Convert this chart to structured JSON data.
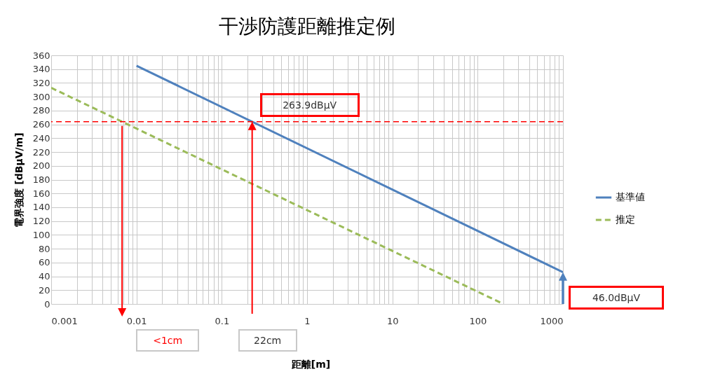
{
  "chart_data": {
    "type": "line",
    "title": "干渉防護距離推定例",
    "xlabel": "距離[m]",
    "ylabel": "電界強度 [dBµV/m]",
    "log": "x",
    "xlim": [
      0.001,
      1000
    ],
    "xticks": [
      0.001,
      0.01,
      0.1,
      1,
      10,
      100,
      1000
    ],
    "ylim": [
      0,
      360
    ],
    "yticks": [
      0,
      20,
      40,
      60,
      80,
      100,
      120,
      140,
      160,
      180,
      200,
      220,
      240,
      260,
      280,
      300,
      320,
      340,
      360
    ],
    "grid": true,
    "legend": "right",
    "series": [
      {
        "name": "基準値",
        "color": "#4f81bd",
        "x": [
          0.01,
          1000
        ],
        "values": [
          345,
          46
        ],
        "line_style": "solid"
      },
      {
        "name": "推定",
        "color": "#9bbb59",
        "x": [
          0.001,
          200
        ],
        "values": [
          313,
          0
        ],
        "line_style": "dashed"
      }
    ],
    "ref_lines": [
      {
        "axis": "y",
        "value": 263.9,
        "color": "#ff0000",
        "line_style": "dashed"
      }
    ],
    "annotations": [
      "<1cm",
      "22cm",
      "263.9dBµV",
      "46.0dBµV"
    ]
  }
}
